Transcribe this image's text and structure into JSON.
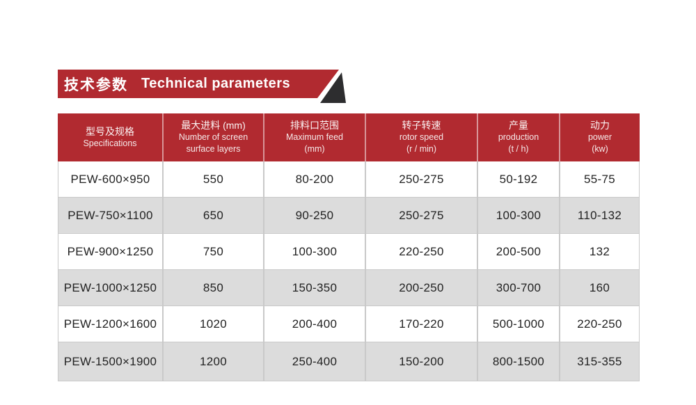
{
  "banner": {
    "title_zh": "技术参数",
    "title_en": "Technical parameters"
  },
  "table": {
    "columns": [
      {
        "zh": "型号及规格",
        "en1": "Specifications",
        "en2": ""
      },
      {
        "zh": "最大进料 (mm)",
        "en1": "Number of screen",
        "en2": "surface layers"
      },
      {
        "zh": "排料口范围",
        "en1": "Maximum feed",
        "en2": "(mm)"
      },
      {
        "zh": "转子转速",
        "en1": "rotor speed",
        "en2": "(r / min)"
      },
      {
        "zh": "产量",
        "en1": "production",
        "en2": "(t / h)"
      },
      {
        "zh": "动力",
        "en1": "power",
        "en2": "(kw)"
      }
    ],
    "rows": [
      [
        "PEW-600×950",
        "550",
        "80-200",
        "250-275",
        "50-192",
        "55-75"
      ],
      [
        "PEW-750×1100",
        "650",
        "90-250",
        "250-275",
        "100-300",
        "110-132"
      ],
      [
        "PEW-900×1250",
        "750",
        "100-300",
        "220-250",
        "200-500",
        "132"
      ],
      [
        "PEW-1000×1250",
        "850",
        "150-350",
        "200-250",
        "300-700",
        "160"
      ],
      [
        "PEW-1200×1600",
        "1020",
        "200-400",
        "170-220",
        "500-1000",
        "220-250"
      ],
      [
        "PEW-1500×1900",
        "1200",
        "250-400",
        "150-200",
        "800-1500",
        "315-355"
      ]
    ]
  },
  "colors": {
    "accent": "#b12a30",
    "dark": "#2d2d2f",
    "row_alt": "#dcdcdc",
    "grid": "#c9c9c9",
    "text": "#222222"
  }
}
